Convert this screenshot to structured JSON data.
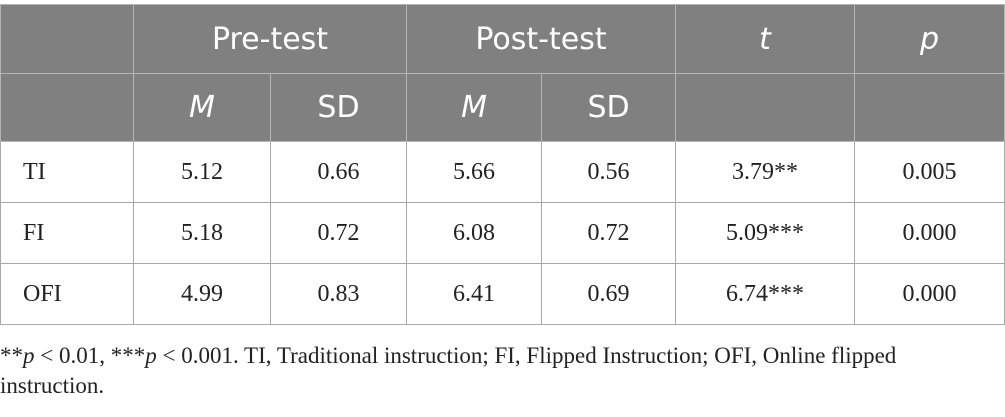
{
  "table": {
    "group_headers": {
      "pre": "Pre-test",
      "post": "Post-test",
      "t": "t",
      "p": "p"
    },
    "sub_headers": {
      "pre_m": "M",
      "pre_sd": "SD",
      "post_m": "M",
      "post_sd": "SD"
    },
    "rows": [
      {
        "label": "TI",
        "pre_m": "5.12",
        "pre_sd": "0.66",
        "post_m": "5.66",
        "post_sd": "0.56",
        "t": "3.79**",
        "p": "0.005"
      },
      {
        "label": "FI",
        "pre_m": "5.18",
        "pre_sd": "0.72",
        "post_m": "6.08",
        "post_sd": "0.72",
        "t": "5.09***",
        "p": "0.000"
      },
      {
        "label": "OFI",
        "pre_m": "4.99",
        "pre_sd": "0.83",
        "post_m": "6.41",
        "post_sd": "0.69",
        "t": "6.74***",
        "p": "0.000"
      }
    ]
  },
  "note": {
    "p1_stars": "**",
    "p1_var": "p",
    "p1_rest": " < 0.01, ",
    "p2_stars": "***",
    "p2_var": "p",
    "p2_rest": " < 0.001. TI, Traditional instruction; FI, Flipped Instruction; OFI, Online flipped instruction."
  },
  "colors": {
    "header_bg": "#808080",
    "header_text": "#ffffff",
    "body_text": "#222222"
  }
}
